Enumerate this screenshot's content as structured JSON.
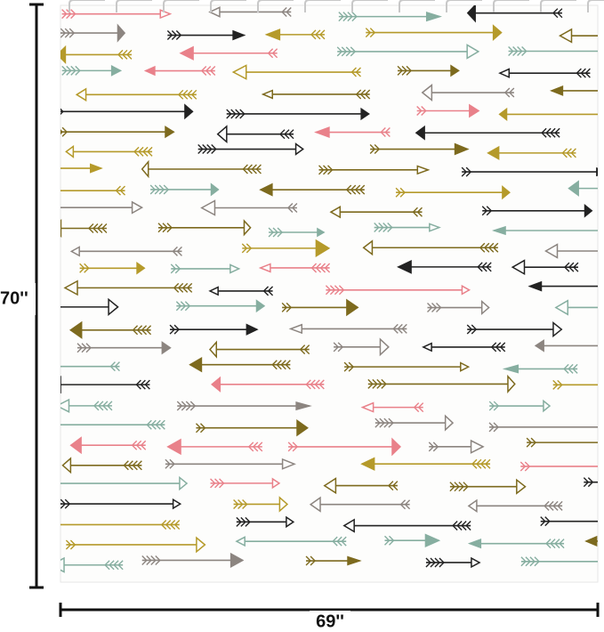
{
  "dimensions": {
    "height": "70''",
    "width": "69''"
  }
}
